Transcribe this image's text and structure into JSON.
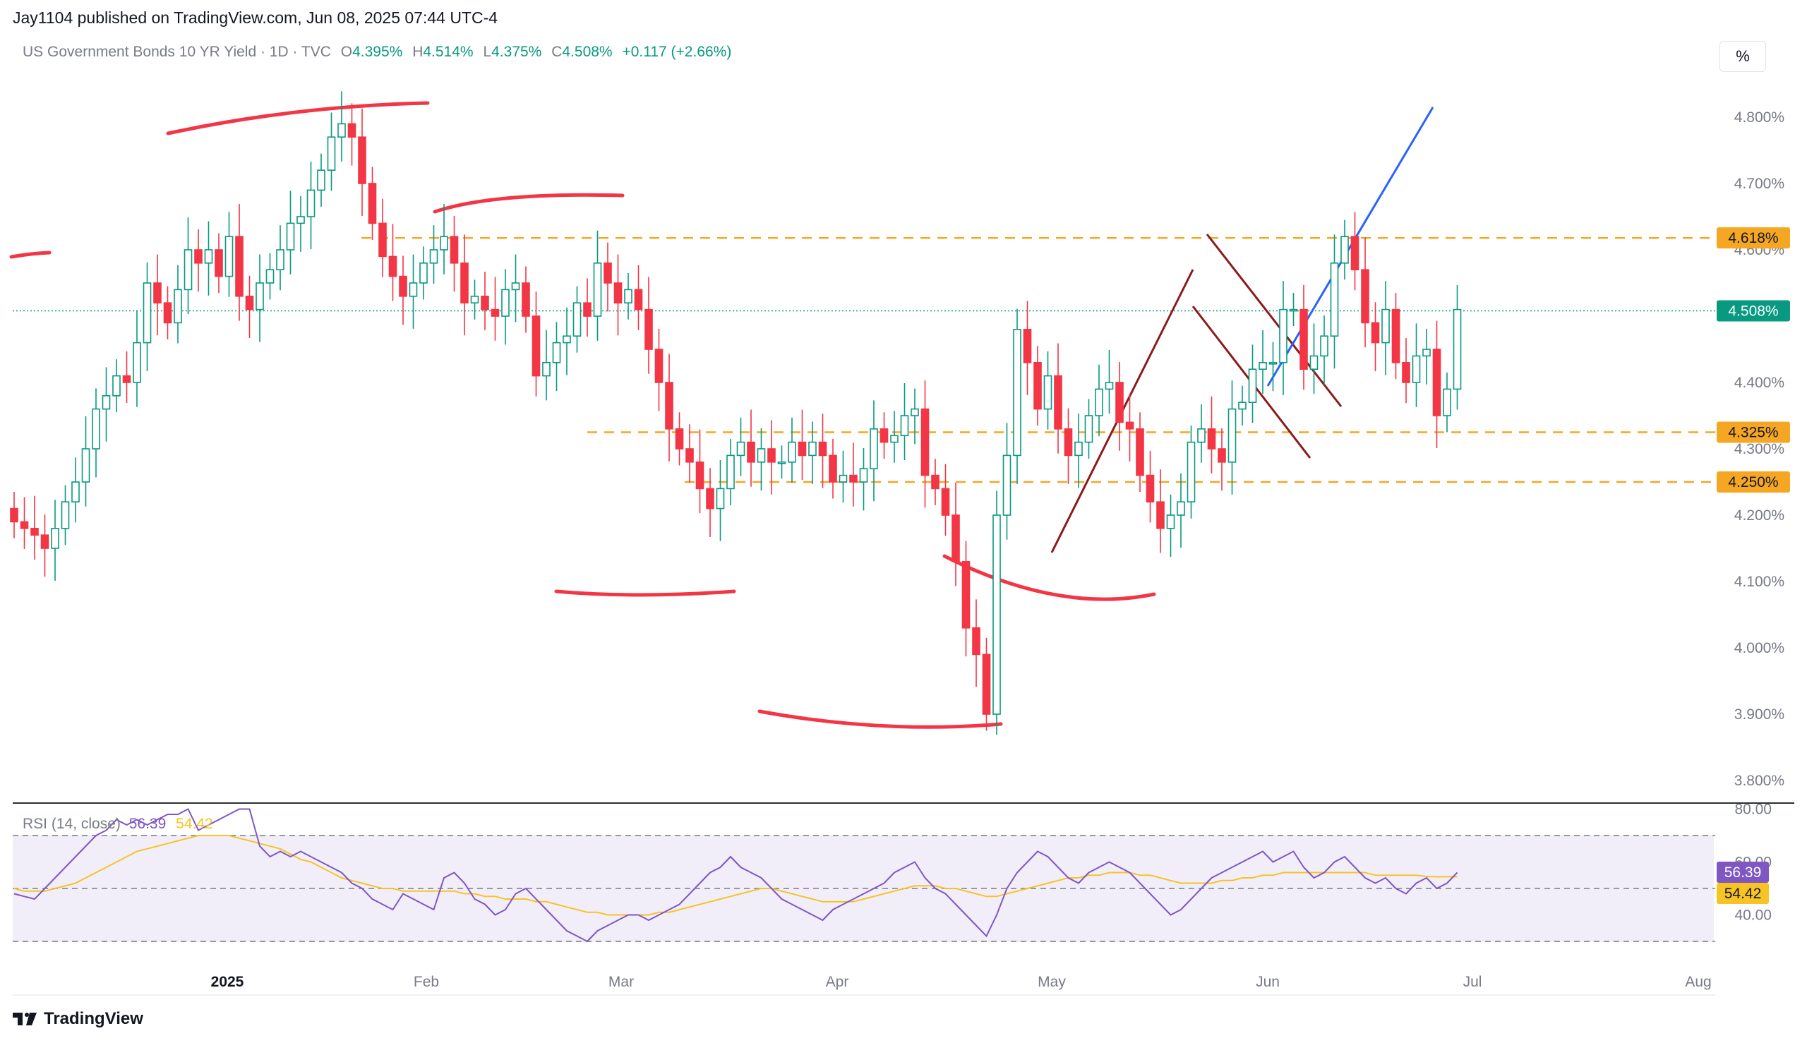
{
  "header": {
    "published": "Jay1104 published on TradingView.com, Jun 08, 2025 07:44 UTC-4"
  },
  "symbol": {
    "name": "US Government Bonds 10 YR Yield · 1D · TVC",
    "open_label": "O",
    "open": "4.395%",
    "high_label": "H",
    "high": "4.514%",
    "low_label": "L",
    "low": "4.375%",
    "close_label": "C",
    "close": "4.508%",
    "change": "+0.117 (+2.66%)"
  },
  "scale_button": "%",
  "rsi_legend": {
    "label": "RSI (14, close)",
    "rsi": "56.39",
    "ma": "54.42"
  },
  "footer": {
    "brand": "TradingView"
  },
  "colors": {
    "up": "#089981",
    "down": "#f23645",
    "level": "#f5a623",
    "rsi": "#7e57c2",
    "rsi_ma": "#f7c325",
    "blue": "#2962ff",
    "maroon": "#8b1a1a"
  },
  "chart_data": [
    {
      "type": "candlestick",
      "title": "US Government Bonds 10 YR Yield",
      "ylim": [
        3.76,
        4.86
      ],
      "y_ticks": [
        "4.800%",
        "4.700%",
        "4.600%",
        "4.400%",
        "4.300%",
        "4.200%",
        "4.100%",
        "4.000%",
        "3.900%",
        "3.800%"
      ],
      "x_ticks": [
        "2025",
        "Feb",
        "Mar",
        "Apr",
        "May",
        "Jun",
        "Jul",
        "Aug"
      ],
      "price_tags": [
        {
          "label": "4.618%",
          "value": 4.618,
          "kind": "level"
        },
        {
          "label": "4.508%",
          "value": 4.508,
          "kind": "last"
        },
        {
          "label": "4.325%",
          "value": 4.325,
          "kind": "level"
        },
        {
          "label": "4.250%",
          "value": 4.25,
          "kind": "level"
        }
      ],
      "closes": [
        4.19,
        4.18,
        4.17,
        4.15,
        4.18,
        4.22,
        4.25,
        4.3,
        4.36,
        4.38,
        4.41,
        4.4,
        4.46,
        4.55,
        4.52,
        4.49,
        4.54,
        4.6,
        4.58,
        4.6,
        4.56,
        4.62,
        4.53,
        4.51,
        4.55,
        4.57,
        4.6,
        4.64,
        4.65,
        4.69,
        4.72,
        4.77,
        4.79,
        4.77,
        4.7,
        4.64,
        4.59,
        4.56,
        4.53,
        4.55,
        4.58,
        4.6,
        4.62,
        4.58,
        4.52,
        4.53,
        4.51,
        4.5,
        4.54,
        4.55,
        4.5,
        4.41,
        4.43,
        4.46,
        4.47,
        4.52,
        4.5,
        4.58,
        4.55,
        4.52,
        4.54,
        4.51,
        4.45,
        4.4,
        4.33,
        4.3,
        4.28,
        4.24,
        4.21,
        4.24,
        4.29,
        4.31,
        4.28,
        4.3,
        4.28,
        4.28,
        4.31,
        4.29,
        4.31,
        4.29,
        4.25,
        4.26,
        4.25,
        4.27,
        4.33,
        4.31,
        4.32,
        4.35,
        4.36,
        4.26,
        4.24,
        4.2,
        4.13,
        4.03,
        3.99,
        3.9,
        4.2,
        4.29,
        4.48,
        4.43,
        4.36,
        4.41,
        4.33,
        4.29,
        4.31,
        4.35,
        4.39,
        4.4,
        4.34,
        4.33,
        4.26,
        4.22,
        4.18,
        4.2,
        4.22,
        4.31,
        4.33,
        4.3,
        4.28,
        4.36,
        4.37,
        4.42,
        4.43,
        4.43,
        4.51,
        4.51,
        4.42,
        4.44,
        4.47,
        4.58,
        4.62,
        4.57,
        4.49,
        4.46,
        4.51,
        4.43,
        4.4,
        4.44,
        4.45,
        4.35,
        4.39,
        4.51
      ]
    },
    {
      "type": "line",
      "title": "RSI (14, close)",
      "ylim": [
        26,
        84
      ],
      "y_ticks": [
        "80.00",
        "60.00",
        "40.00"
      ],
      "bands": [
        70,
        50,
        30
      ],
      "series": [
        {
          "name": "RSI",
          "last": "56.39",
          "values": [
            48,
            47,
            46,
            50,
            54,
            58,
            62,
            66,
            70,
            72,
            76,
            74,
            76,
            74,
            76,
            78,
            78,
            80,
            72,
            74,
            76,
            78,
            80,
            80,
            66,
            62,
            64,
            62,
            64,
            62,
            60,
            58,
            56,
            52,
            50,
            46,
            44,
            42,
            48,
            46,
            44,
            42,
            54,
            56,
            52,
            46,
            44,
            40,
            42,
            48,
            50,
            46,
            42,
            38,
            34,
            32,
            30,
            34,
            36,
            38,
            40,
            40,
            38,
            40,
            42,
            44,
            48,
            52,
            56,
            58,
            62,
            58,
            56,
            54,
            50,
            46,
            44,
            42,
            40,
            38,
            42,
            44,
            46,
            48,
            50,
            52,
            56,
            58,
            60,
            54,
            50,
            48,
            44,
            40,
            36,
            32,
            40,
            50,
            56,
            60,
            64,
            62,
            58,
            54,
            52,
            56,
            58,
            60,
            58,
            56,
            52,
            48,
            44,
            40,
            42,
            46,
            50,
            54,
            56,
            58,
            60,
            62,
            64,
            60,
            62,
            64,
            58,
            54,
            56,
            60,
            62,
            58,
            54,
            52,
            54,
            50,
            48,
            52,
            54,
            50,
            52,
            56
          ]
        },
        {
          "name": "RSI MA",
          "last": "54.42",
          "values": [
            50,
            49,
            49,
            49,
            50,
            51,
            52,
            54,
            56,
            58,
            60,
            62,
            64,
            65,
            66,
            67,
            68,
            69,
            70,
            70,
            70,
            70,
            69,
            68,
            67,
            66,
            65,
            63,
            61,
            60,
            58,
            56,
            54,
            53,
            52,
            51,
            50,
            50,
            49,
            49,
            49,
            49,
            49,
            49,
            48,
            48,
            47,
            47,
            46,
            46,
            46,
            45,
            45,
            44,
            43,
            42,
            41,
            41,
            40,
            40,
            40,
            40,
            40,
            41,
            41,
            42,
            43,
            44,
            45,
            46,
            47,
            48,
            49,
            50,
            50,
            49,
            48,
            47,
            46,
            45,
            45,
            45,
            45,
            46,
            47,
            48,
            49,
            50,
            51,
            51,
            51,
            50,
            50,
            49,
            48,
            47,
            47,
            48,
            49,
            50,
            51,
            52,
            53,
            54,
            54,
            55,
            55,
            56,
            56,
            56,
            55,
            55,
            54,
            53,
            52,
            52,
            52,
            52,
            53,
            53,
            54,
            54,
            55,
            55,
            56,
            56,
            56,
            56,
            56,
            56,
            56,
            56,
            56,
            55,
            55,
            55,
            55,
            55,
            54.5,
            54.4,
            54.42,
            54.42
          ]
        }
      ]
    }
  ]
}
